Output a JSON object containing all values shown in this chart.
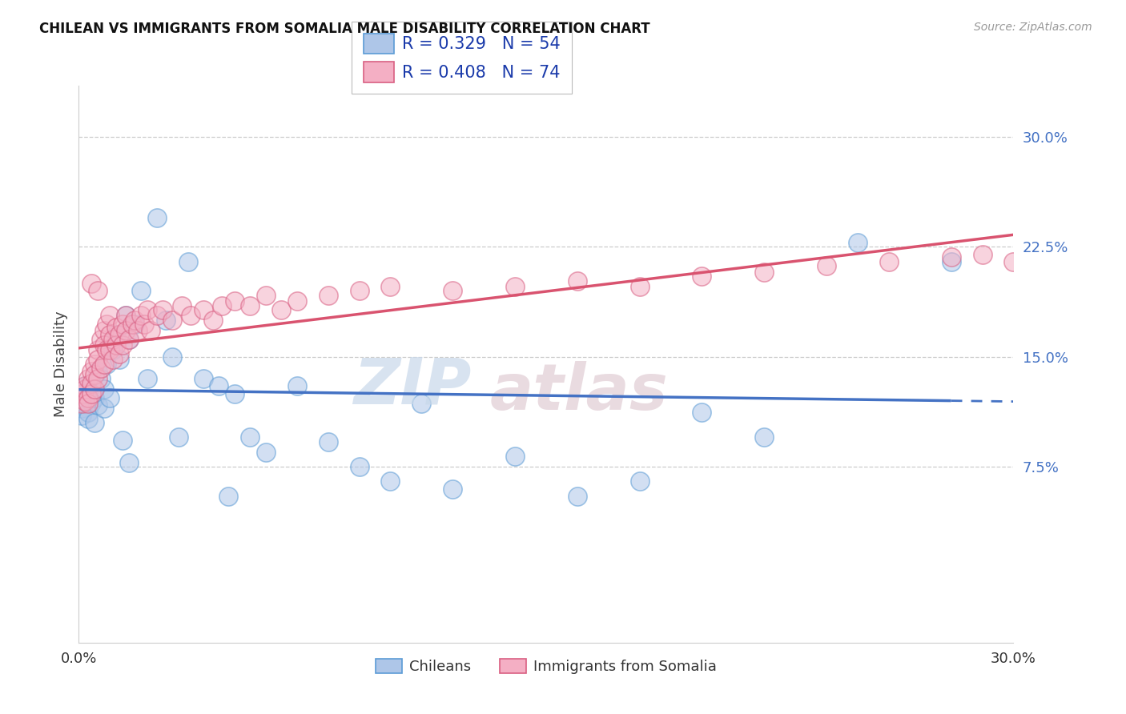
{
  "title": "CHILEAN VS IMMIGRANTS FROM SOMALIA MALE DISABILITY CORRELATION CHART",
  "source": "Source: ZipAtlas.com",
  "ylabel": "Male Disability",
  "xlim": [
    0.0,
    0.3
  ],
  "ylim": [
    -0.045,
    0.335
  ],
  "ytick_labels": [
    "7.5%",
    "15.0%",
    "22.5%",
    "30.0%"
  ],
  "ytick_vals": [
    0.075,
    0.15,
    0.225,
    0.3
  ],
  "xtick_labels": [
    "0.0%",
    "30.0%"
  ],
  "xtick_vals": [
    0.0,
    0.3
  ],
  "bottom_legend_labels": [
    "Chileans",
    "Immigrants from Somalia"
  ],
  "chilean_color": "#aec6e8",
  "somalia_color": "#f4afc4",
  "chilean_edge_color": "#5b9bd5",
  "somalia_edge_color": "#d95f82",
  "chilean_line_color": "#4472c4",
  "somalia_line_color": "#d9536f",
  "R_chilean": 0.329,
  "N_chilean": 54,
  "R_somalia": 0.408,
  "N_somalia": 74,
  "chilean_x": [
    0.001,
    0.001,
    0.001,
    0.002,
    0.002,
    0.002,
    0.003,
    0.003,
    0.003,
    0.004,
    0.004,
    0.005,
    0.005,
    0.006,
    0.006,
    0.007,
    0.008,
    0.008,
    0.009,
    0.01,
    0.011,
    0.012,
    0.013,
    0.015,
    0.016,
    0.018,
    0.02,
    0.022,
    0.025,
    0.028,
    0.03,
    0.035,
    0.04,
    0.045,
    0.05,
    0.055,
    0.06,
    0.07,
    0.08,
    0.09,
    0.1,
    0.11,
    0.12,
    0.14,
    0.16,
    0.18,
    0.2,
    0.22,
    0.25,
    0.28,
    0.014,
    0.016,
    0.032,
    0.048
  ],
  "chilean_y": [
    0.115,
    0.125,
    0.11,
    0.13,
    0.12,
    0.118,
    0.112,
    0.125,
    0.108,
    0.119,
    0.13,
    0.105,
    0.122,
    0.14,
    0.117,
    0.135,
    0.128,
    0.115,
    0.145,
    0.122,
    0.155,
    0.165,
    0.148,
    0.178,
    0.162,
    0.172,
    0.195,
    0.135,
    0.245,
    0.175,
    0.15,
    0.215,
    0.135,
    0.13,
    0.125,
    0.095,
    0.085,
    0.13,
    0.092,
    0.075,
    0.065,
    0.118,
    0.06,
    0.082,
    0.055,
    0.065,
    0.112,
    0.095,
    0.228,
    0.215,
    0.093,
    0.078,
    0.095,
    0.055
  ],
  "somalia_x": [
    0.001,
    0.001,
    0.002,
    0.002,
    0.002,
    0.003,
    0.003,
    0.003,
    0.004,
    0.004,
    0.004,
    0.005,
    0.005,
    0.005,
    0.006,
    0.006,
    0.006,
    0.007,
    0.007,
    0.008,
    0.008,
    0.008,
    0.009,
    0.009,
    0.01,
    0.01,
    0.01,
    0.011,
    0.011,
    0.012,
    0.012,
    0.013,
    0.013,
    0.014,
    0.014,
    0.015,
    0.015,
    0.016,
    0.017,
    0.018,
    0.019,
    0.02,
    0.021,
    0.022,
    0.023,
    0.025,
    0.027,
    0.03,
    0.033,
    0.036,
    0.04,
    0.043,
    0.046,
    0.05,
    0.055,
    0.06,
    0.065,
    0.07,
    0.08,
    0.09,
    0.1,
    0.12,
    0.14,
    0.16,
    0.18,
    0.2,
    0.22,
    0.24,
    0.26,
    0.28,
    0.3,
    0.004,
    0.006,
    0.29
  ],
  "somalia_y": [
    0.118,
    0.125,
    0.13,
    0.12,
    0.128,
    0.135,
    0.122,
    0.118,
    0.14,
    0.132,
    0.125,
    0.145,
    0.138,
    0.128,
    0.155,
    0.148,
    0.135,
    0.162,
    0.142,
    0.168,
    0.158,
    0.145,
    0.172,
    0.155,
    0.178,
    0.165,
    0.155,
    0.162,
    0.148,
    0.17,
    0.158,
    0.165,
    0.152,
    0.172,
    0.158,
    0.178,
    0.168,
    0.162,
    0.172,
    0.175,
    0.168,
    0.178,
    0.172,
    0.182,
    0.168,
    0.178,
    0.182,
    0.175,
    0.185,
    0.178,
    0.182,
    0.175,
    0.185,
    0.188,
    0.185,
    0.192,
    0.182,
    0.188,
    0.192,
    0.195,
    0.198,
    0.195,
    0.198,
    0.202,
    0.198,
    0.205,
    0.208,
    0.212,
    0.215,
    0.218,
    0.215,
    0.2,
    0.195,
    0.22
  ]
}
